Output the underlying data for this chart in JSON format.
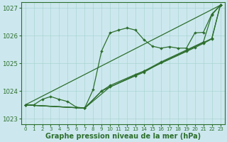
{
  "xlabel": "Graphe pression niveau de la mer (hPa)",
  "xlim": [
    -0.5,
    23.5
  ],
  "ylim": [
    1022.8,
    1027.2
  ],
  "yticks": [
    1023,
    1024,
    1025,
    1026,
    1027
  ],
  "xticks": [
    0,
    1,
    2,
    3,
    4,
    5,
    6,
    7,
    8,
    9,
    10,
    11,
    12,
    13,
    14,
    15,
    16,
    17,
    18,
    19,
    20,
    21,
    22,
    23
  ],
  "bg_color": "#cce8ee",
  "grid_color": "#aad4d4",
  "line_color": "#2d6e2d",
  "lines": [
    {
      "x": [
        0,
        1,
        2,
        3,
        4,
        5,
        6,
        7,
        8,
        9,
        10,
        11,
        12,
        13,
        14,
        15,
        16,
        17,
        18,
        19,
        20,
        21,
        22,
        23
      ],
      "y": [
        1023.5,
        1023.5,
        1023.7,
        1023.8,
        1023.7,
        1023.62,
        1023.42,
        1023.38,
        1024.05,
        1025.45,
        1026.1,
        1026.2,
        1026.28,
        1026.2,
        1025.85,
        1025.62,
        1025.55,
        1025.6,
        1025.55,
        1025.55,
        1026.1,
        1026.12,
        1026.78,
        1027.1
      ]
    },
    {
      "x": [
        0,
        7,
        10,
        13,
        14,
        16,
        19,
        21,
        22,
        23
      ],
      "y": [
        1023.5,
        1023.38,
        1024.15,
        1024.55,
        1024.68,
        1025.02,
        1025.45,
        1025.75,
        1025.9,
        1027.1
      ]
    },
    {
      "x": [
        0,
        7,
        9,
        10,
        13,
        14,
        16,
        19,
        21,
        22,
        23
      ],
      "y": [
        1023.5,
        1023.38,
        1024.0,
        1024.2,
        1024.6,
        1024.72,
        1025.05,
        1025.48,
        1025.77,
        1026.75,
        1027.1
      ]
    },
    {
      "x": [
        0,
        23
      ],
      "y": [
        1023.5,
        1027.1
      ]
    },
    {
      "x": [
        0,
        7,
        9,
        14,
        20,
        21,
        22,
        23
      ],
      "y": [
        1023.5,
        1023.38,
        1024.0,
        1024.72,
        1025.57,
        1025.72,
        1025.88,
        1027.1
      ]
    }
  ]
}
